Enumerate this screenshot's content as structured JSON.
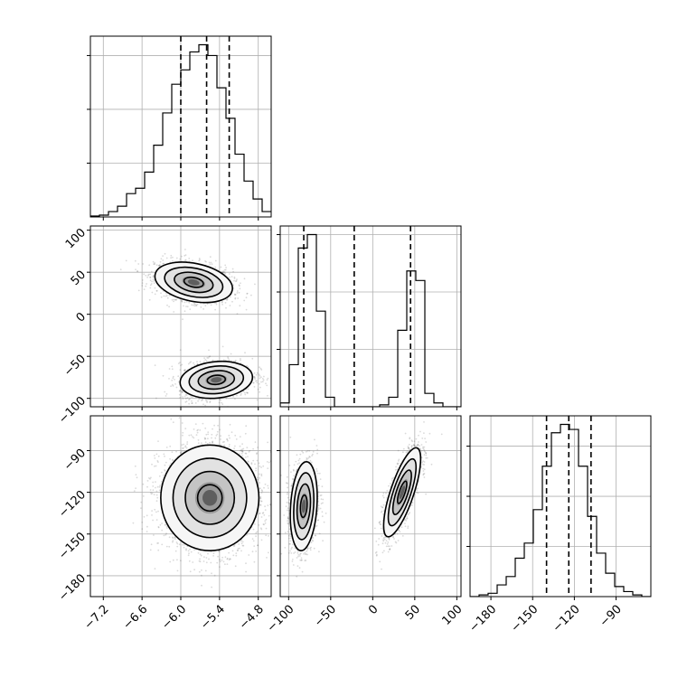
{
  "chart_data": {
    "type": "corner",
    "parameters": [
      {
        "index": 0,
        "range": [
          -7.4,
          -4.6
        ],
        "ticks": [
          -7.2,
          -6.6,
          -6.0,
          -5.4,
          -4.8
        ],
        "tick_labels": [
          "−7.2",
          "−6.6",
          "−6.0",
          "−5.4",
          "−4.8"
        ],
        "quantiles": [
          -6.0,
          -5.6,
          -5.25
        ]
      },
      {
        "index": 1,
        "range": [
          -110,
          105
        ],
        "ticks": [
          -100,
          -50,
          0,
          50,
          100
        ],
        "tick_labels": [
          "−100",
          "−50",
          "0",
          "50",
          "100"
        ],
        "quantiles": [
          -82,
          -22,
          45
        ]
      },
      {
        "index": 2,
        "range": [
          -195,
          -65
        ],
        "ticks": [
          -180,
          -150,
          -120,
          -90
        ],
        "tick_labels": [
          "−180",
          "−150",
          "−120",
          "−90"
        ],
        "quantiles": [
          -140,
          -124,
          -108
        ]
      }
    ],
    "histograms": [
      {
        "param": 0,
        "edges": [
          -7.4,
          -7.26,
          -7.12,
          -6.98,
          -6.84,
          -6.7,
          -6.56,
          -6.42,
          -6.28,
          -6.14,
          -6.0,
          -5.86,
          -5.72,
          -5.58,
          -5.44,
          -5.3,
          -5.16,
          -5.02,
          -4.88,
          -4.74,
          -4.6
        ],
        "counts": [
          0.5,
          1.0,
          3.0,
          6.0,
          13.0,
          16.0,
          25.0,
          40.0,
          58.0,
          74.0,
          82.0,
          92.0,
          96.0,
          90.0,
          72.0,
          55.0,
          35.0,
          20.0,
          10.0,
          3.0
        ]
      },
      {
        "param": 1,
        "edges": [
          -110,
          -99.25,
          -88.5,
          -77.75,
          -67,
          -56.25,
          -45.5,
          -34.75,
          -24,
          -13.25,
          -2.5,
          8.25,
          19,
          29.75,
          40.5,
          51.25,
          62,
          72.75,
          83.5,
          94.25,
          105
        ],
        "counts": [
          2.0,
          22.0,
          83.0,
          90.0,
          50.0,
          5.0,
          0.0,
          0.0,
          0.0,
          0.0,
          0.0,
          1.0,
          5.0,
          40.0,
          71.0,
          66.0,
          7.0,
          2.0,
          0.0,
          0.0
        ]
      },
      {
        "param": 2,
        "edges": [
          -195,
          -188.5,
          -182,
          -175.5,
          -169,
          -162.5,
          -156,
          -149.5,
          -143,
          -136.5,
          -130,
          -123.5,
          -117,
          -110.5,
          -104,
          -97.5,
          -91,
          -84.5,
          -78,
          -71.5,
          -65
        ],
        "counts": [
          0.0,
          1.0,
          2.0,
          7.0,
          12.0,
          23.0,
          32.0,
          52.0,
          78.0,
          98.0,
          103.0,
          100.0,
          78.0,
          48.0,
          26.0,
          14.0,
          6.0,
          3.0,
          1.0,
          0.0
        ]
      }
    ],
    "pairs": [
      {
        "x": 0,
        "y": 1,
        "clusters": [
          {
            "center": [
              -5.8,
              38
            ],
            "sx": 0.3,
            "sy": 12,
            "rho": -0.3,
            "n": 1500
          },
          {
            "center": [
              -5.45,
              -78
            ],
            "sx": 0.28,
            "sy": 11,
            "rho": 0.15,
            "n": 1500
          }
        ]
      },
      {
        "x": 0,
        "y": 2,
        "clusters": [
          {
            "center": [
              -5.55,
              -124
            ],
            "sx": 0.38,
            "sy": 19,
            "rho": 0.0,
            "n": 3000
          }
        ]
      },
      {
        "x": 1,
        "y": 2,
        "clusters": [
          {
            "center": [
              -82,
              -130
            ],
            "sx": 8,
            "sy": 16,
            "rho": 0.2,
            "n": 1500
          },
          {
            "center": [
              35,
              -120
            ],
            "sx": 11,
            "sy": 16,
            "rho": 0.75,
            "n": 1500
          }
        ]
      }
    ],
    "contour_levels_sigma": [
      0.5,
      1.0,
      1.5,
      2.0
    ],
    "colors": {
      "points": "#555555",
      "lines": "#000000",
      "grid": "#b0b0b0"
    },
    "grid": true
  }
}
